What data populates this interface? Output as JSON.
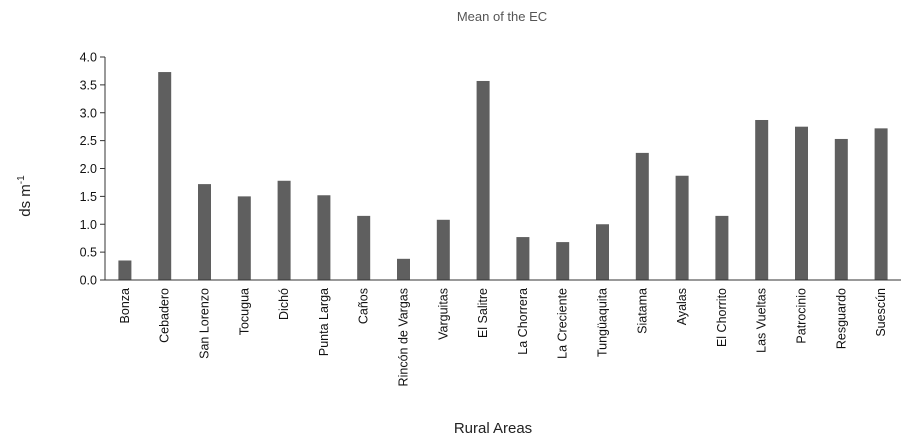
{
  "chart_data": {
    "type": "bar",
    "title": "Mean of the EC",
    "xlabel": "Rural Areas",
    "ylabel": "ds m",
    "ylabel_sup": "-1",
    "ylim": [
      0,
      4
    ],
    "yticks": [
      "0.0",
      "0.5",
      "1.0",
      "1.5",
      "2.0",
      "2.5",
      "3.0",
      "3.5",
      "4.0"
    ],
    "grid": false,
    "categories": [
      "Bonza",
      "Cebadero",
      "San Lorenzo",
      "Tocugua",
      "Dichó",
      "Punta Larga",
      "Caños",
      "Rincón de Vargas",
      "Varguitas",
      "El Salitre",
      "La Chorrera",
      "La Creciente",
      "Tungüaquita",
      "Siatama",
      "Ayalas",
      "El Chorrito",
      "Las Vueltas",
      "Patrocinio",
      "Resguardo",
      "Suescún"
    ],
    "values": [
      0.35,
      3.73,
      1.72,
      1.5,
      1.78,
      1.52,
      1.15,
      0.38,
      1.08,
      3.57,
      0.77,
      0.68,
      1.0,
      2.28,
      1.87,
      1.15,
      2.87,
      2.75,
      2.53,
      2.72
    ]
  }
}
